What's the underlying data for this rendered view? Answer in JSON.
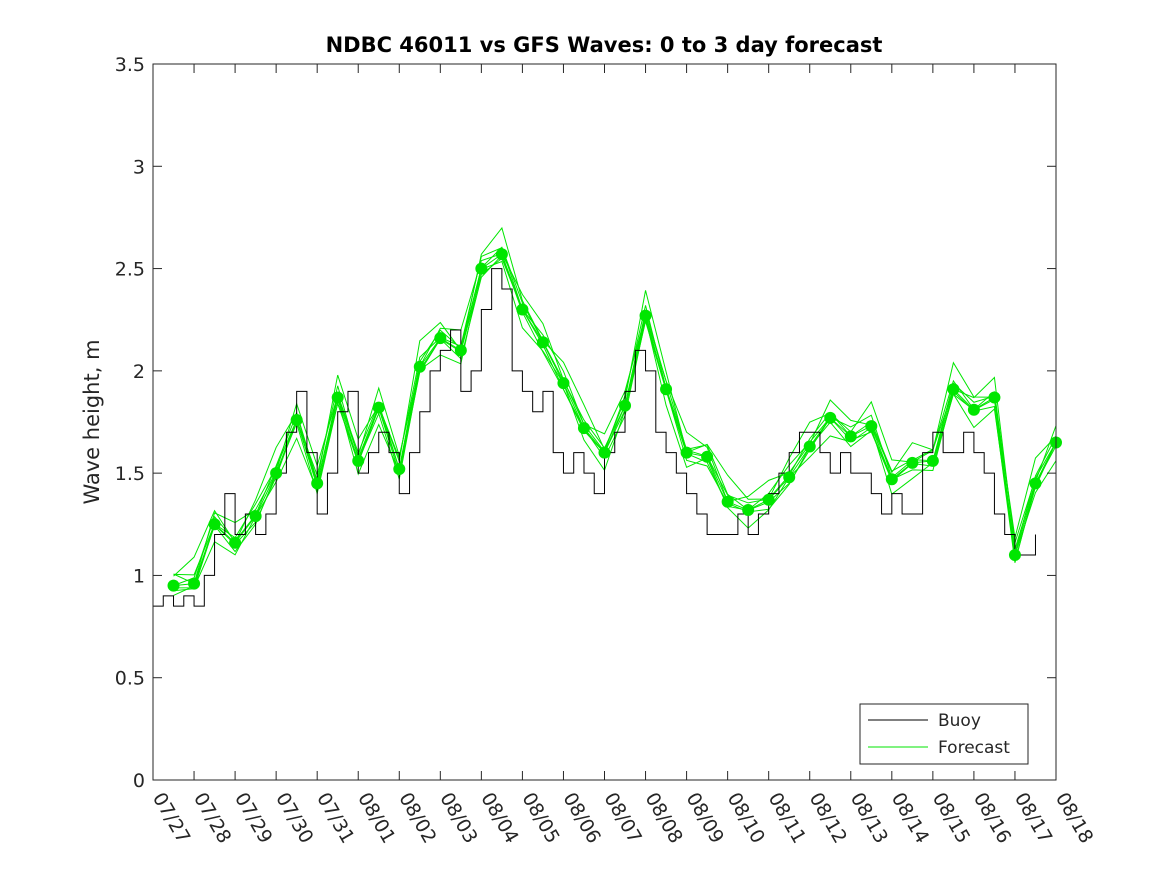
{
  "chart_data": {
    "type": "line",
    "title": "NDBC 46011 vs GFS Waves: 0 to 3 day forecast",
    "xlabel": "",
    "ylabel": "Wave height, m",
    "xlim": [
      0,
      22
    ],
    "ylim": [
      0,
      3.5
    ],
    "grid": false,
    "legend_position": "bottom-right",
    "x_tick_labels": [
      "07/27",
      "07/28",
      "07/29",
      "07/30",
      "07/31",
      "08/01",
      "08/02",
      "08/03",
      "08/04",
      "08/05",
      "08/06",
      "08/07",
      "08/08",
      "08/09",
      "08/10",
      "08/11",
      "08/12",
      "08/13",
      "08/14",
      "08/15",
      "08/16",
      "08/17",
      "08/18"
    ],
    "y_ticks": [
      0,
      0.5,
      1,
      1.5,
      2,
      2.5,
      3,
      3.5
    ],
    "y_tick_labels": [
      "0",
      "0.5",
      "1",
      "1.5",
      "2",
      "2.5",
      "3",
      "3.5"
    ],
    "colors": {
      "buoy": "#000000",
      "forecast": "#00e600",
      "markers": "#00e600",
      "axes": "#262626"
    },
    "series": [
      {
        "name": "Buoy",
        "x": [
          0,
          0.25,
          0.5,
          0.75,
          1,
          1.25,
          1.5,
          1.75,
          2,
          2.25,
          2.5,
          2.75,
          3,
          3.25,
          3.5,
          3.75,
          4,
          4.25,
          4.5,
          4.75,
          5,
          5.25,
          5.5,
          5.75,
          6,
          6.25,
          6.5,
          6.75,
          7,
          7.25,
          7.5,
          7.75,
          8,
          8.25,
          8.5,
          8.75,
          9,
          9.25,
          9.5,
          9.75,
          10,
          10.25,
          10.5,
          10.75,
          11,
          11.25,
          11.5,
          11.75,
          12,
          12.25,
          12.5,
          12.75,
          13,
          13.25,
          13.5,
          13.75,
          14,
          14.25,
          14.5,
          14.75,
          15,
          15.25,
          15.5,
          15.75,
          16,
          16.25,
          16.5,
          16.75,
          17,
          17.25,
          17.5,
          17.75,
          18,
          18.25,
          18.5,
          18.75,
          19,
          19.25,
          19.5,
          19.75,
          20,
          20.25,
          20.5,
          20.75,
          21,
          21.25,
          21.5
        ],
        "values": [
          0.85,
          0.9,
          0.85,
          0.9,
          0.85,
          1.0,
          1.2,
          1.4,
          1.2,
          1.3,
          1.2,
          1.3,
          1.5,
          1.7,
          1.9,
          1.6,
          1.3,
          1.5,
          1.8,
          1.9,
          1.5,
          1.6,
          1.7,
          1.6,
          1.4,
          1.6,
          1.8,
          2.0,
          2.1,
          2.2,
          1.9,
          2.0,
          2.3,
          2.5,
          2.4,
          2.0,
          1.9,
          1.8,
          1.9,
          1.6,
          1.5,
          1.6,
          1.5,
          1.4,
          1.6,
          1.7,
          1.9,
          2.1,
          2.0,
          1.7,
          1.6,
          1.5,
          1.4,
          1.3,
          1.2,
          1.2,
          1.2,
          1.3,
          1.2,
          1.3,
          1.4,
          1.5,
          1.6,
          1.7,
          1.7,
          1.6,
          1.5,
          1.6,
          1.5,
          1.5,
          1.4,
          1.3,
          1.4,
          1.3,
          1.3,
          1.6,
          1.7,
          1.6,
          1.6,
          1.7,
          1.6,
          1.5,
          1.3,
          1.2,
          1.1,
          1.1,
          1.2
        ]
      },
      {
        "name": "Forecast",
        "x": [
          0.5,
          1,
          1.5,
          2,
          2.5,
          3,
          3.5,
          4,
          4.5,
          5,
          5.5,
          6,
          6.5,
          7,
          7.5,
          8,
          8.5,
          9,
          9.5,
          10,
          10.5,
          11,
          11.5,
          12,
          12.5,
          13,
          13.5,
          14,
          14.5,
          15,
          15.5,
          16,
          16.5,
          17,
          17.5,
          18,
          18.5,
          19,
          19.5,
          20,
          20.5,
          21,
          21.5,
          22
        ],
        "values": [
          0.95,
          0.96,
          1.25,
          1.16,
          1.29,
          1.5,
          1.76,
          1.45,
          1.87,
          1.56,
          1.82,
          1.52,
          2.02,
          2.16,
          2.1,
          2.5,
          2.57,
          2.3,
          2.14,
          1.94,
          1.72,
          1.6,
          1.83,
          2.27,
          1.91,
          1.6,
          1.58,
          1.36,
          1.32,
          1.37,
          1.48,
          1.63,
          1.77,
          1.68,
          1.73,
          1.47,
          1.55,
          1.56,
          1.91,
          1.81,
          1.87,
          1.1,
          1.45,
          1.65
        ]
      }
    ]
  },
  "legend": {
    "buoy_label": "Buoy",
    "forecast_label": "Forecast"
  }
}
